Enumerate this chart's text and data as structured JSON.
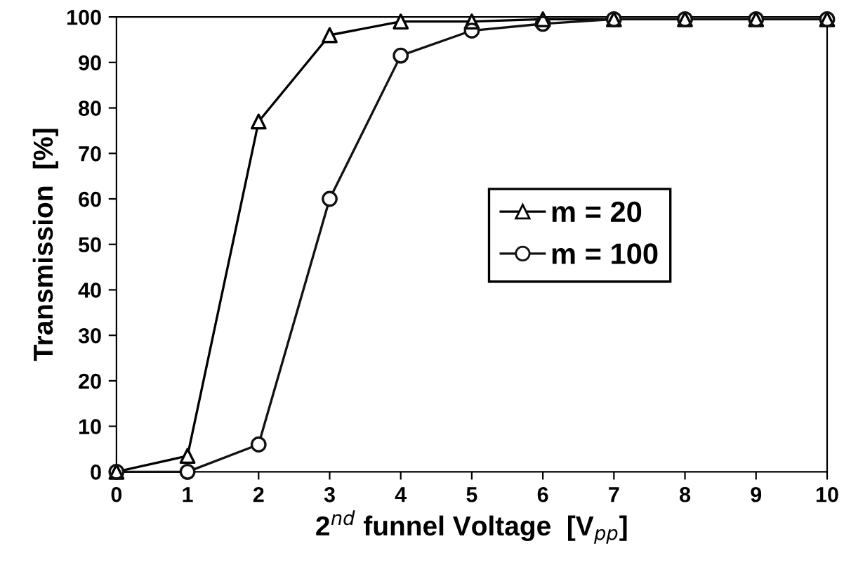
{
  "chart_data": {
    "type": "line",
    "xlabel": "2$^{nd}$ funnel Voltage  [V$_{pp}$]",
    "ylabel": "Transmission  [%]",
    "x": [
      0,
      1,
      2,
      3,
      4,
      5,
      6,
      7,
      8,
      9,
      10
    ],
    "series": [
      {
        "name": "m = 20",
        "color": "#000000",
        "marker": "triangle",
        "values": [
          0,
          3.5,
          77,
          96,
          99,
          99,
          99.5,
          99.5,
          99.5,
          99.5,
          99.5
        ]
      },
      {
        "name": "m = 100",
        "color": "#111111",
        "marker": "circle",
        "values": [
          0,
          0,
          6,
          60,
          91.5,
          97,
          98.5,
          99.5,
          99.5,
          99.5,
          99.5
        ]
      }
    ],
    "xlim": [
      0,
      10
    ],
    "xticks": [
      0,
      1,
      2,
      3,
      4,
      5,
      6,
      7,
      8,
      9,
      10
    ],
    "ylim": [
      0,
      100
    ],
    "yticks": [
      0,
      10,
      20,
      30,
      40,
      50,
      60,
      70,
      80,
      90,
      100
    ],
    "grid": false,
    "legend": "right",
    "line_style": "solid"
  }
}
